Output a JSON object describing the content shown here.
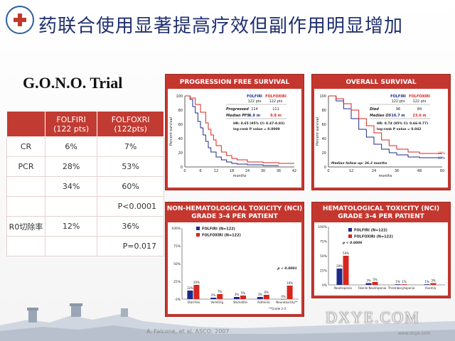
{
  "header": {
    "title": "药联合使用显著提高疗效但副作用明显增加",
    "logo_icon": "hospital-logo-icon"
  },
  "trial_name": "G.O.N.O. Trial",
  "results_table": {
    "headers": [
      "",
      "FOLFIRI\n(122 pts)",
      "FOLFOXRI\n(122pts)"
    ],
    "rows": [
      [
        "CR",
        "6%",
        "7%"
      ],
      [
        "PCR",
        "28%",
        "53%"
      ],
      [
        "",
        "34%",
        "60%"
      ],
      [
        "",
        "",
        "P<0.0001"
      ],
      [
        "R0切除率",
        "12%",
        "36%"
      ],
      [
        "",
        "",
        "P=0.017"
      ]
    ]
  },
  "pfs": {
    "title": "PROGRESSION FREE SURVIVAL",
    "col1": "FOLFIRI",
    "col1_sub": "122 pts",
    "col2": "FOLFOXIRI",
    "col2_sub": "122 pts",
    "row1_label": "Progressed",
    "row1_v1": "114",
    "row1_v2": "111",
    "row2_label": "Median PFS",
    "row2_v1": "6.9 m",
    "row2_v2": "9.8 m",
    "hr": "HR: 0.65 (95% CI: 0.47-0.83)",
    "pval": "log-rank P value = 0.0009",
    "ylabel": "Percent survival",
    "xlabel": "months"
  },
  "os": {
    "title": "OVERALL SURVIVAL",
    "col1": "FOLFIRI",
    "col1_sub": "122 pts",
    "col2": "FOLFOXIRI",
    "col2_sub": "122 pts",
    "row1_label": "Died",
    "row1_v1": "96",
    "row1_v2": "84",
    "row2_label": "Median OS",
    "row2_v1": "16.7 m",
    "row2_v2": "23.6 m",
    "hr": "HR: 0.74 (95% CI: 0.66-0.77)",
    "pval": "log-rank P value = 0.042",
    "follow": "Median follow up: 36.2 months",
    "end1": "19%",
    "end2": "13%",
    "ylabel": "Percent survival",
    "xlabel": "months"
  },
  "nonheme": {
    "title_line1": "NON-HEMATOLOGICAL TOXICITY (NCI)",
    "title_line2": "GRADE 3-4 PER PATIENT",
    "legend1": "FOLFIRI",
    "legend1_n": "(N=122)",
    "legend2": "FOLFOXIRI",
    "legend2_n": "(N=122)",
    "pnote": "p < 0.0001",
    "footnote": "**Grade 2-3"
  },
  "heme": {
    "title_line1": "HEMATOLOGICAL TOXICITY (NCI)",
    "title_line2": "GRADE 3-4 PER PATIENT",
    "legend1": "FOLFIRI",
    "legend1_n": "(N=122)",
    "legend2": "FOLFOXIRI",
    "legend2_n": "(N=122)",
    "pnote": "p < 0.0006"
  },
  "citation": "A. Falcone, et al. ASCO, 2007",
  "watermark": "DXYE.COM",
  "watermark_sub": "www.dxye.com",
  "colors": {
    "folfiri": "#1d2a8c",
    "folfoxiri": "#d7261e",
    "panel_red": "#c4372f"
  },
  "chart_data": [
    {
      "type": "line",
      "title": "PROGRESSION FREE SURVIVAL",
      "xlabel": "months",
      "ylabel": "Percent survival",
      "xlim": [
        0,
        42
      ],
      "ylim": [
        0,
        100
      ],
      "xticks": [
        0,
        6,
        12,
        18,
        24,
        30,
        36,
        42
      ],
      "yticks": [
        0,
        20,
        40,
        60,
        80,
        100
      ],
      "series": [
        {
          "name": "FOLFIRI",
          "x": [
            0,
            2,
            3,
            4,
            5,
            6,
            7,
            8,
            9,
            10,
            12,
            14,
            16,
            18,
            20,
            24,
            30,
            36
          ],
          "y": [
            100,
            95,
            85,
            76,
            64,
            55,
            45,
            36,
            27,
            21,
            14,
            10,
            7,
            5,
            4,
            3,
            2,
            2
          ]
        },
        {
          "name": "FOLFOXIRI",
          "x": [
            0,
            2,
            4,
            6,
            8,
            9,
            10,
            11,
            12,
            14,
            16,
            18,
            20,
            24,
            30,
            36,
            42
          ],
          "y": [
            100,
            97,
            88,
            77,
            62,
            53,
            45,
            38,
            30,
            21,
            16,
            12,
            10,
            7,
            6,
            5,
            5
          ]
        }
      ]
    },
    {
      "type": "line",
      "title": "OVERALL SURVIVAL",
      "xlabel": "months",
      "ylabel": "Percent survival",
      "xlim": [
        0,
        60
      ],
      "ylim": [
        0,
        100
      ],
      "xticks": [
        0,
        12,
        24,
        36,
        48,
        60
      ],
      "yticks": [
        0,
        20,
        40,
        60,
        80,
        100
      ],
      "series": [
        {
          "name": "FOLFIRI",
          "x": [
            0,
            4,
            8,
            12,
            16,
            20,
            24,
            28,
            32,
            36,
            42,
            48,
            54,
            60
          ],
          "y": [
            100,
            93,
            82,
            68,
            53,
            42,
            32,
            25,
            20,
            17,
            14,
            13,
            13,
            13
          ]
        },
        {
          "name": "FOLFOXIRI",
          "x": [
            0,
            4,
            8,
            12,
            16,
            20,
            24,
            28,
            32,
            36,
            42,
            48,
            54,
            60
          ],
          "y": [
            100,
            96,
            89,
            80,
            68,
            58,
            48,
            38,
            30,
            25,
            21,
            19,
            19,
            19
          ]
        }
      ]
    },
    {
      "type": "bar",
      "title": "NON-HEMATOLOGICAL TOXICITY (NCI) GRADE 3-4 PER PATIENT",
      "categories": [
        "Diarrhea",
        "Vomiting",
        "Stomatitis",
        "Asthenia",
        "Neurotoxicity**"
      ],
      "ylim": [
        0,
        100
      ],
      "yticks": [
        0,
        25,
        50,
        75,
        100
      ],
      "series": [
        {
          "name": "FOLFIRI",
          "values": [
            12,
            2,
            3,
            3,
            0
          ],
          "labels": [
            "12%",
            "2%",
            "3%",
            "3%",
            "0%"
          ]
        },
        {
          "name": "FOLFOXIRI",
          "values": [
            20,
            7,
            5,
            6,
            19
          ],
          "labels": [
            "20%",
            "7%",
            "5%",
            "6%",
            "19%"
          ]
        }
      ]
    },
    {
      "type": "bar",
      "title": "HEMATOLOGICAL TOXICITY (NCI) GRADE 3-4 PER PATIENT",
      "categories": [
        "Neutropenia",
        "Febrile Neutropenia",
        "Thrombocytopenia",
        "Anemia"
      ],
      "ylim": [
        0,
        100
      ],
      "yticks": [
        0,
        25,
        50,
        75,
        100
      ],
      "series": [
        {
          "name": "FOLFIRI",
          "values": [
            28,
            3,
            1,
            1
          ],
          "labels": [
            "28%",
            "3%",
            "1%",
            "1%"
          ]
        },
        {
          "name": "FOLFOXIRI",
          "values": [
            50,
            5,
            1,
            3
          ],
          "labels": [
            "50%",
            "5%",
            "1%",
            "3%"
          ]
        }
      ]
    }
  ]
}
